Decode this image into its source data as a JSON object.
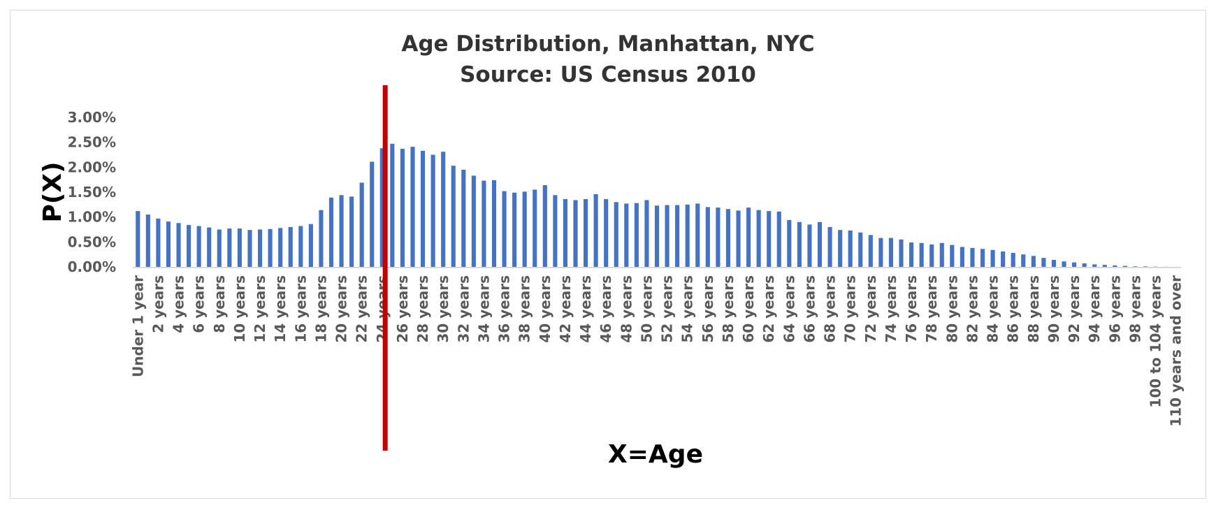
{
  "chart_data": {
    "type": "bar",
    "title_lines": [
      "Age Distribution, Manhattan, NYC",
      "Source: US Census 2010"
    ],
    "xlabel": "X=Age",
    "ylabel": "P(X)",
    "yticks": [
      "0.00%",
      "0.50%",
      "1.00%",
      "1.50%",
      "2.00%",
      "2.50%",
      "3.00%"
    ],
    "ylim": [
      0,
      3.0
    ],
    "grid": false,
    "legend": "none",
    "bar_color": "#4472C4",
    "marker_color": "#C00000",
    "marker_category": "24 years",
    "categories": [
      "Under 1 year",
      "1 year",
      "2 years",
      "3 years",
      "4 years",
      "5 years",
      "6 years",
      "7 years",
      "8 years",
      "9 years",
      "10 years",
      "11 years",
      "12 years",
      "13 years",
      "14 years",
      "15 years",
      "16 years",
      "17 years",
      "18 years",
      "19 years",
      "20 years",
      "21 years",
      "22 years",
      "23 years",
      "24 years",
      "25 years",
      "26 years",
      "27 years",
      "28 years",
      "29 years",
      "30 years",
      "31 years",
      "32 years",
      "33 years",
      "34 years",
      "35 years",
      "36 years",
      "37 years",
      "38 years",
      "39 years",
      "40 years",
      "41 years",
      "42 years",
      "43 years",
      "44 years",
      "45 years",
      "46 years",
      "47 years",
      "48 years",
      "49 years",
      "50 years",
      "51 years",
      "52 years",
      "53 years",
      "54 years",
      "55 years",
      "56 years",
      "57 years",
      "58 years",
      "59 years",
      "60 years",
      "61 years",
      "62 years",
      "63 years",
      "64 years",
      "65 years",
      "66 years",
      "67 years",
      "68 years",
      "69 years",
      "70 years",
      "71 years",
      "72 years",
      "73 years",
      "74 years",
      "75 years",
      "76 years",
      "77 years",
      "78 years",
      "79 years",
      "80 years",
      "81 years",
      "82 years",
      "83 years",
      "84 years",
      "85 years",
      "86 years",
      "87 years",
      "88 years",
      "89 years",
      "90 years",
      "91 years",
      "92 years",
      "93 years",
      "94 years",
      "95 years",
      "96 years",
      "97 years",
      "98 years",
      "99 years",
      "100 to 104 years",
      "105 to 109 years",
      "110 years and over"
    ],
    "tick_labels": [
      "Under 1 year",
      "",
      "2 years",
      "",
      "4 years",
      "",
      "6 years",
      "",
      "8 years",
      "",
      "10 years",
      "",
      "12 years",
      "",
      "14 years",
      "",
      "16 years",
      "",
      "18 years",
      "",
      "20 years",
      "",
      "22 years",
      "",
      "24 years",
      "",
      "26 years",
      "",
      "28 years",
      "",
      "30 years",
      "",
      "32 years",
      "",
      "34 years",
      "",
      "36 years",
      "",
      "38 years",
      "",
      "40 years",
      "",
      "42 years",
      "",
      "44 years",
      "",
      "46 years",
      "",
      "48 years",
      "",
      "50 years",
      "",
      "52 years",
      "",
      "54 years",
      "",
      "56 years",
      "",
      "58 years",
      "",
      "60 years",
      "",
      "62 years",
      "",
      "64 years",
      "",
      "66 years",
      "",
      "68 years",
      "",
      "70 years",
      "",
      "72 years",
      "",
      "74 years",
      "",
      "76 years",
      "",
      "78 years",
      "",
      "80 years",
      "",
      "82 years",
      "",
      "84 years",
      "",
      "86 years",
      "",
      "88 years",
      "",
      "90 years",
      "",
      "92 years",
      "",
      "94 years",
      "",
      "96 years",
      "",
      "98 years",
      "",
      "100 to 104 years",
      "",
      "110 years and over"
    ],
    "values": [
      1.12,
      1.05,
      0.97,
      0.91,
      0.88,
      0.84,
      0.82,
      0.79,
      0.75,
      0.77,
      0.77,
      0.74,
      0.75,
      0.76,
      0.78,
      0.8,
      0.82,
      0.86,
      1.14,
      1.39,
      1.44,
      1.41,
      1.69,
      2.11,
      2.38,
      2.47,
      2.37,
      2.41,
      2.33,
      2.25,
      2.31,
      2.03,
      1.95,
      1.83,
      1.73,
      1.74,
      1.52,
      1.49,
      1.51,
      1.55,
      1.64,
      1.44,
      1.36,
      1.34,
      1.36,
      1.46,
      1.36,
      1.3,
      1.27,
      1.28,
      1.34,
      1.23,
      1.24,
      1.24,
      1.25,
      1.27,
      1.2,
      1.19,
      1.16,
      1.13,
      1.19,
      1.14,
      1.12,
      1.11,
      0.94,
      0.9,
      0.85,
      0.9,
      0.8,
      0.74,
      0.73,
      0.69,
      0.64,
      0.58,
      0.58,
      0.55,
      0.49,
      0.48,
      0.45,
      0.48,
      0.44,
      0.4,
      0.38,
      0.36,
      0.34,
      0.31,
      0.28,
      0.25,
      0.22,
      0.18,
      0.14,
      0.11,
      0.09,
      0.07,
      0.05,
      0.04,
      0.03,
      0.02,
      0.01,
      0.01,
      0.005,
      0.002,
      0.001
    ]
  }
}
